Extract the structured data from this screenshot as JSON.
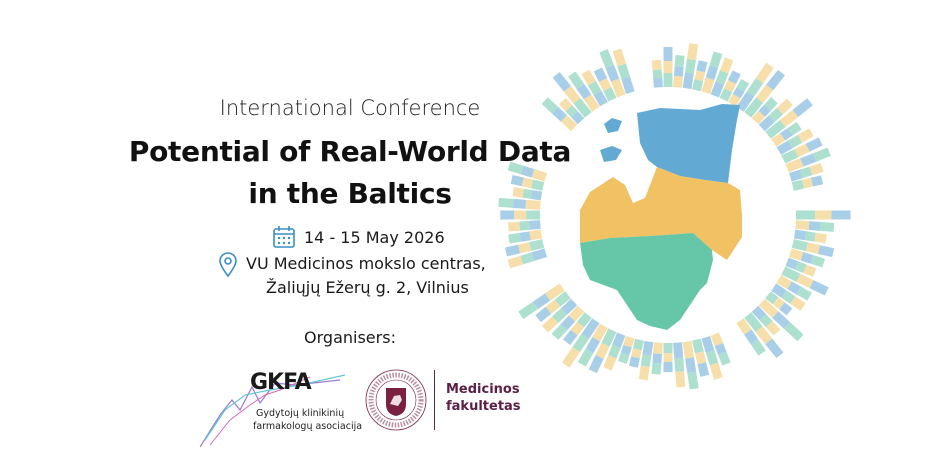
{
  "header": {
    "subtitle": "International Conference",
    "title_line1": "Potential of Real-World Data",
    "title_line2": "in the Baltics"
  },
  "event": {
    "date": "14 - 15 May 2026",
    "date_icon": "calendar-icon",
    "location_line1": "VU Medicinos mokslo centras,",
    "location_line2": "Žaliųjų Ežerų g. 2, Vilnius",
    "location_icon": "map-pin-icon"
  },
  "organisers": {
    "label": "Organisers:",
    "gkfa": {
      "name": "GKFA",
      "subtitle_line1": "Gydytojų klinikinių",
      "subtitle_line2": "farmakologų asociacija"
    },
    "vu": {
      "seal_text": "VILNIAUS UNIVERSITETAS · 1579 · UNIVERSITAS VILNENSIS",
      "faculty_line1": "Medicinos",
      "faculty_line2": "fakultetas"
    }
  },
  "colors": {
    "estonia": "#62a9d3",
    "latvia": "#f0c263",
    "lithuania": "#66c7a8",
    "bar_blue": "#a9cfe8",
    "bar_yellow": "#f6dfaa",
    "bar_green": "#aee0cf",
    "vu_maroon": "#7a2040"
  }
}
